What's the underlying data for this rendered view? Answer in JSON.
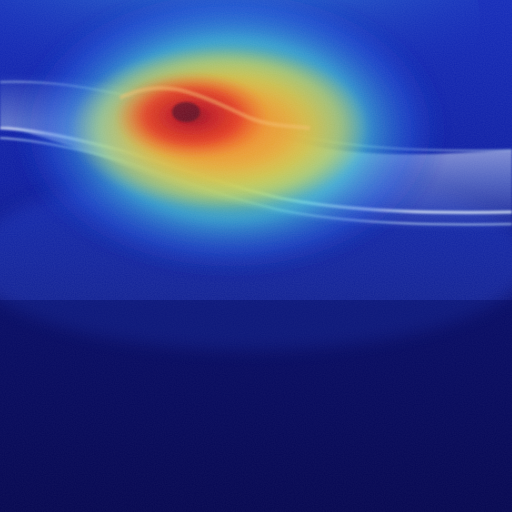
{
  "image": {
    "kind": "oct-retinal-scan-with-attention-heatmap",
    "colormap": "jet",
    "colors": {
      "background_deep": "#04054f",
      "background_mid": "#0a1a9a",
      "heat_cool": "#1f3fd8",
      "heat_cyan": "#3fc6d8",
      "heat_green": "#7fd86a",
      "heat_yellow": "#e8d24a",
      "heat_orange": "#f08a2a",
      "heat_hot": "#d8201f",
      "heat_core": "#8a1020",
      "retina_band": "#b8d8f0"
    }
  }
}
